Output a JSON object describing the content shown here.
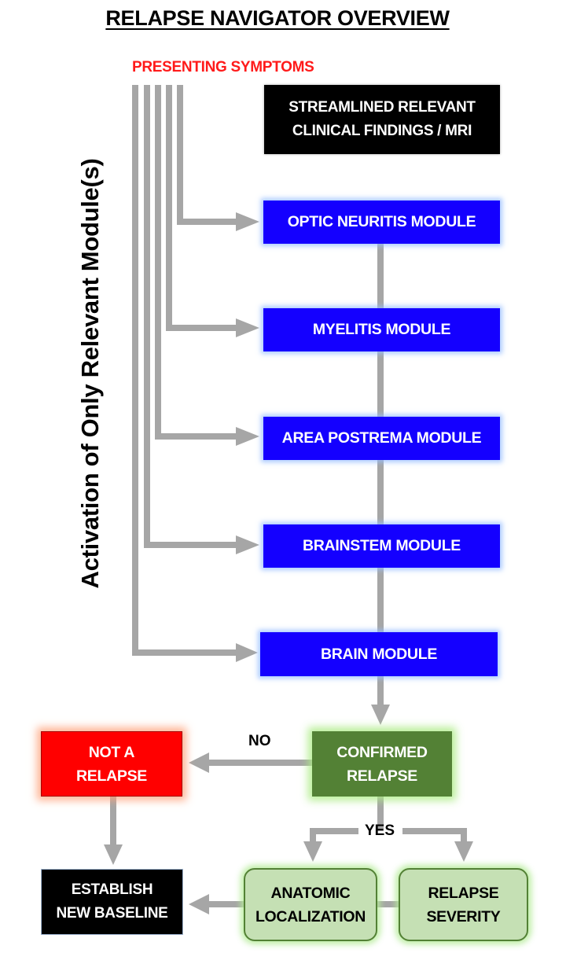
{
  "title": "RELAPSE NAVIGATOR OVERVIEW",
  "presenting_symptoms": "PRESENTING SYMPTOMS",
  "vertical_label": "Activation of Only Relevant Module(s)",
  "boxes": {
    "findings": "STREAMLINED RELEVANT\nCLINICAL FINDINGS / MRI",
    "modules": [
      "OPTIC NEURITIS MODULE",
      "MYELITIS MODULE",
      "AREA POSTREMA MODULE",
      "BRAINSTEM MODULE",
      "BRAIN MODULE"
    ],
    "confirmed": "CONFIRMED\nRELAPSE",
    "not_relapse": "NOT A\nRELAPSE",
    "baseline": "ESTABLISH\nNEW BASELINE",
    "anatomic": "ANATOMIC\nLOCALIZATION",
    "severity": "RELAPSE\nSEVERITY"
  },
  "edge_labels": {
    "no": "NO",
    "yes": "YES"
  },
  "colors": {
    "module_blue": "#1400ff",
    "confirmed_green": "#538135",
    "not_relapse_red": "#ff0000",
    "outcome_light_green": "#c5e0b4",
    "connector_gray": "#a6a6a6",
    "presenting_red": "#ff1a1a"
  }
}
